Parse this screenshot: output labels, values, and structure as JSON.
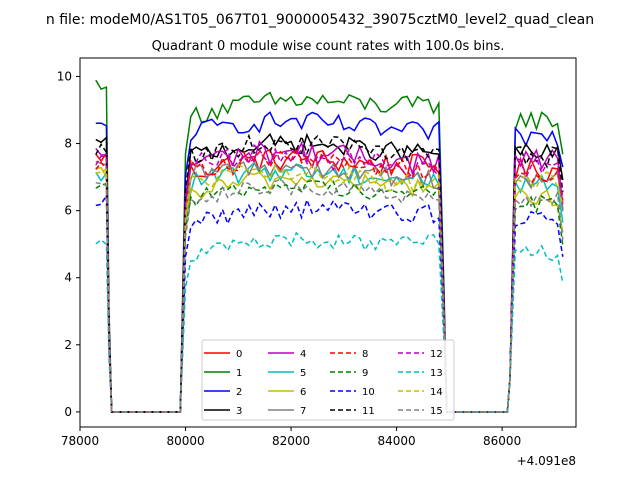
{
  "chart_data": {
    "type": "line",
    "title": "Quadrant 0 module wise count rates with 100.0s bins.",
    "suptitle": "n file: modeM0/AS1T05_067T01_9000005432_39075cztM0_level2_quad_clean",
    "xlabel": "",
    "ylabel": "",
    "x_offset_label": "+4.091e8",
    "xlim": [
      78000,
      87400
    ],
    "ylim": [
      -0.45,
      10.55
    ],
    "x_ticks": [
      78000,
      80000,
      82000,
      84000,
      86000
    ],
    "x_tick_labels": [
      "78000",
      "80000",
      "82000",
      "84000",
      "86000"
    ],
    "y_ticks": [
      0,
      2,
      4,
      6,
      8,
      10
    ],
    "y_tick_labels": [
      "0",
      "2",
      "4",
      "6",
      "8",
      "10"
    ],
    "grid": false,
    "legend_position": "bottom-center",
    "legend_columns": 4,
    "time_samples": {
      "gti1": {
        "start": 78300,
        "end": 78500,
        "step": 100
      },
      "drop1": [
        [
          78550,
          2.5
        ],
        [
          78600,
          0
        ]
      ],
      "gap1": {
        "start": 78700,
        "end": 79900,
        "step": 100
      },
      "gti2": {
        "start": 80000,
        "end": 84850,
        "step": 100
      },
      "drop2": [
        [
          84900,
          3.0
        ],
        [
          84950,
          0
        ]
      ],
      "gap2": {
        "start": 85000,
        "end": 86100,
        "step": 100
      },
      "rise3": [
        [
          86150,
          1.0
        ]
      ],
      "gti3": {
        "start": 86250,
        "end": 87150,
        "step": 100
      }
    },
    "series": [
      {
        "name": "0",
        "color": "#ff0000",
        "dash": "solid",
        "gti1": 7.6,
        "gti2_start": 7.1,
        "gti2_end": 7.6,
        "gti3": 7.2,
        "noise": 0.35
      },
      {
        "name": "1",
        "color": "#008000",
        "dash": "solid",
        "gti1": 9.8,
        "gti2_start": 8.8,
        "gti2_end": 9.4,
        "gti3": 8.7,
        "noise": 0.3
      },
      {
        "name": "2",
        "color": "#0000ff",
        "dash": "solid",
        "gti1": 8.5,
        "gti2_start": 8.3,
        "gti2_end": 8.6,
        "gti3": 8.2,
        "noise": 0.3
      },
      {
        "name": "3",
        "color": "#000000",
        "dash": "solid",
        "gti1": 8.0,
        "gti2_start": 7.6,
        "gti2_end": 8.0,
        "gti3": 7.7,
        "noise": 0.3
      },
      {
        "name": "4",
        "color": "#bf00bf",
        "dash": "solid",
        "gti1": 7.7,
        "gti2_start": 7.4,
        "gti2_end": 7.7,
        "gti3": 7.5,
        "noise": 0.35
      },
      {
        "name": "5",
        "color": "#00bfbf",
        "dash": "solid",
        "gti1": 7.0,
        "gti2_start": 6.8,
        "gti2_end": 7.2,
        "gti3": 6.8,
        "noise": 0.3
      },
      {
        "name": "6",
        "color": "#bfbf00",
        "dash": "solid",
        "gti1": 7.1,
        "gti2_start": 6.5,
        "gti2_end": 7.0,
        "gti3": 6.4,
        "noise": 0.3
      },
      {
        "name": "7",
        "color": "#808080",
        "dash": "solid",
        "gti1": 7.3,
        "gti2_start": 7.0,
        "gti2_end": 7.2,
        "gti3": 6.9,
        "noise": 0.3
      },
      {
        "name": "8",
        "color": "#ff0000",
        "dash": "dashed",
        "gti1": 7.4,
        "gti2_start": 7.2,
        "gti2_end": 7.5,
        "gti3": 7.1,
        "noise": 0.3
      },
      {
        "name": "9",
        "color": "#008000",
        "dash": "dashed",
        "gti1": 6.8,
        "gti2_start": 6.3,
        "gti2_end": 6.8,
        "gti3": 6.2,
        "noise": 0.25
      },
      {
        "name": "10",
        "color": "#0000ff",
        "dash": "dashed",
        "gti1": 6.3,
        "gti2_start": 5.6,
        "gti2_end": 6.2,
        "gti3": 5.8,
        "noise": 0.3
      },
      {
        "name": "11",
        "color": "#000000",
        "dash": "dashed",
        "gti1": 7.8,
        "gti2_start": 7.6,
        "gti2_end": 8.0,
        "gti3": 7.6,
        "noise": 0.3
      },
      {
        "name": "12",
        "color": "#bf00bf",
        "dash": "dashed",
        "gti1": 7.5,
        "gti2_start": 7.3,
        "gti2_end": 7.6,
        "gti3": 7.3,
        "noise": 0.35
      },
      {
        "name": "13",
        "color": "#00bfbf",
        "dash": "dashed",
        "gti1": 5.1,
        "gti2_start": 4.6,
        "gti2_end": 5.3,
        "gti3": 4.7,
        "noise": 0.25
      },
      {
        "name": "14",
        "color": "#bfbf00",
        "dash": "dashed",
        "gti1": 7.2,
        "gti2_start": 6.8,
        "gti2_end": 7.1,
        "gti3": 6.9,
        "noise": 0.3
      },
      {
        "name": "15",
        "color": "#808080",
        "dash": "dashed",
        "gti1": 6.9,
        "gti2_start": 6.3,
        "gti2_end": 6.7,
        "gti3": 6.3,
        "noise": 0.25
      }
    ]
  }
}
